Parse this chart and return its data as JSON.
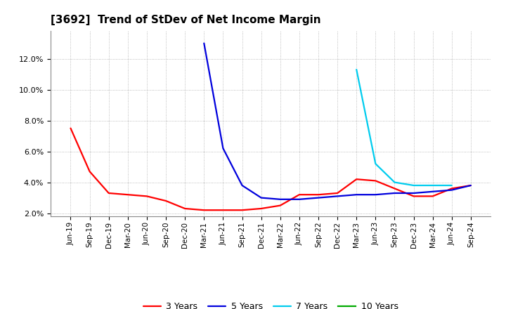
{
  "title": "[3692]  Trend of StDev of Net Income Margin",
  "title_fontsize": 11,
  "background_color": "#ffffff",
  "plot_bg_color": "#ffffff",
  "grid_color": "#aaaaaa",
  "ylim": [
    0.018,
    0.138
  ],
  "yticks": [
    0.02,
    0.04,
    0.06,
    0.08,
    0.1,
    0.12
  ],
  "legend_labels": [
    "3 Years",
    "5 Years",
    "7 Years",
    "10 Years"
  ],
  "line_colors": [
    "#ff0000",
    "#0000dd",
    "#00ccee",
    "#00aa00"
  ],
  "x_labels": [
    "Jun-19",
    "Sep-19",
    "Dec-19",
    "Mar-20",
    "Jun-20",
    "Sep-20",
    "Dec-20",
    "Mar-21",
    "Jun-21",
    "Sep-21",
    "Dec-21",
    "Mar-22",
    "Jun-22",
    "Sep-22",
    "Dec-22",
    "Mar-23",
    "Jun-23",
    "Sep-23",
    "Dec-23",
    "Mar-24",
    "Jun-24",
    "Sep-24"
  ],
  "series_3yr": [
    0.075,
    0.047,
    0.033,
    0.032,
    0.031,
    0.028,
    0.023,
    0.022,
    0.022,
    0.022,
    0.023,
    0.025,
    0.032,
    0.032,
    0.033,
    0.042,
    0.041,
    0.036,
    0.031,
    0.031,
    0.036,
    0.038
  ],
  "series_5yr": [
    null,
    null,
    null,
    null,
    null,
    null,
    null,
    0.13,
    0.062,
    0.038,
    0.03,
    0.029,
    0.029,
    0.03,
    0.031,
    0.032,
    0.032,
    0.033,
    0.033,
    0.034,
    0.035,
    0.038
  ],
  "series_7yr": [
    null,
    null,
    null,
    null,
    null,
    null,
    null,
    null,
    null,
    null,
    null,
    null,
    null,
    null,
    null,
    0.113,
    0.052,
    0.04,
    0.038,
    0.038,
    0.038,
    null
  ],
  "series_10yr": [
    null,
    null,
    null,
    null,
    null,
    null,
    null,
    null,
    null,
    null,
    null,
    null,
    null,
    null,
    null,
    null,
    null,
    null,
    null,
    null,
    null,
    null
  ],
  "lw": 1.6
}
